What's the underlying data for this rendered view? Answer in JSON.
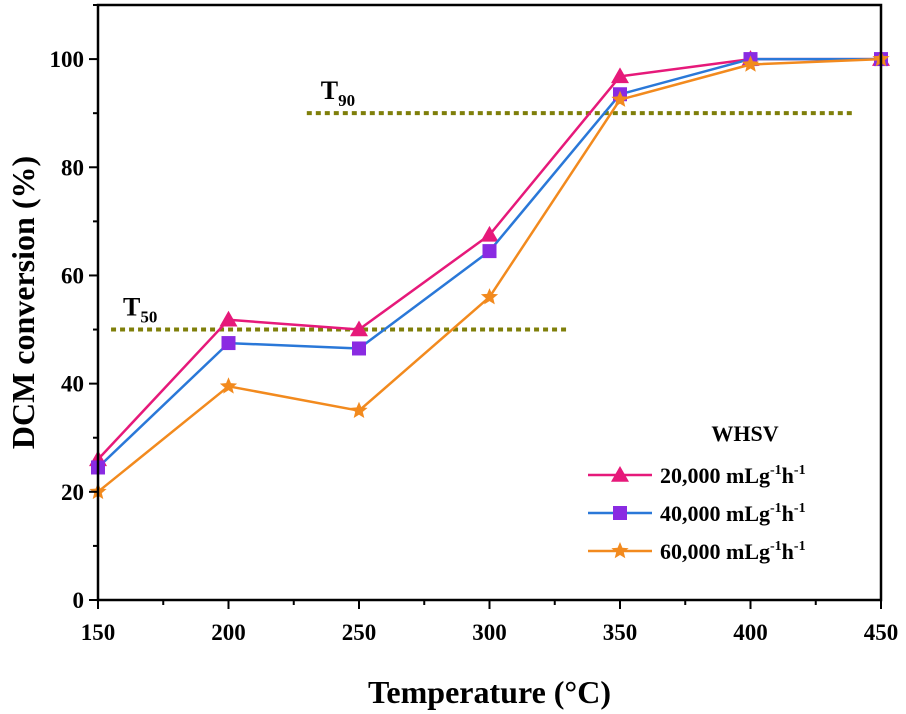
{
  "chart_data": {
    "type": "line",
    "xlabel": "Temperature (°C)",
    "ylabel": "DCM conversion (%)",
    "xlim": [
      150,
      450
    ],
    "ylim": [
      0,
      110
    ],
    "xticks": [
      150,
      200,
      250,
      300,
      350,
      400,
      450
    ],
    "yticks": [
      0,
      20,
      40,
      60,
      80,
      100
    ],
    "grid": false,
    "legend_title": "WHSV",
    "legend_position": "bottom-right",
    "x": [
      150,
      200,
      250,
      300,
      350,
      400,
      450
    ],
    "series": [
      {
        "name": "20,000 mLg⁻¹h⁻¹",
        "name_base": "20,000 mLg",
        "name_exp1": "-1",
        "name_mid": "h",
        "name_exp2": "-1",
        "color": "#e6197a",
        "marker": "triangle",
        "values": [
          26,
          51.8,
          50,
          67.5,
          96.8,
          100,
          100
        ]
      },
      {
        "name": "40,000 mLg⁻¹h⁻¹",
        "name_base": "40,000 mLg",
        "name_exp1": "-1",
        "name_mid": "h",
        "name_exp2": "-1",
        "color": "#2a78d8",
        "marker": "square",
        "values": [
          24.5,
          47.5,
          46.5,
          64.5,
          93.5,
          100,
          100
        ],
        "marker_color": "#8a2be2"
      },
      {
        "name": "60,000 mLg⁻¹h⁻¹",
        "name_base": "60,000 mLg",
        "name_exp1": "-1",
        "name_mid": "h",
        "name_exp2": "-1",
        "color": "#f28a1e",
        "marker": "star",
        "values": [
          20,
          39.5,
          35,
          56,
          92.5,
          99,
          100
        ]
      }
    ],
    "reference_lines": [
      {
        "label_main": "T",
        "label_sub": "50",
        "y": 50,
        "x_start": 155,
        "x_end": 330,
        "color": "#7f7f0a"
      },
      {
        "label_main": "T",
        "label_sub": "90",
        "y": 90,
        "x_start": 230,
        "x_end": 440,
        "color": "#7f7f0a"
      }
    ]
  }
}
